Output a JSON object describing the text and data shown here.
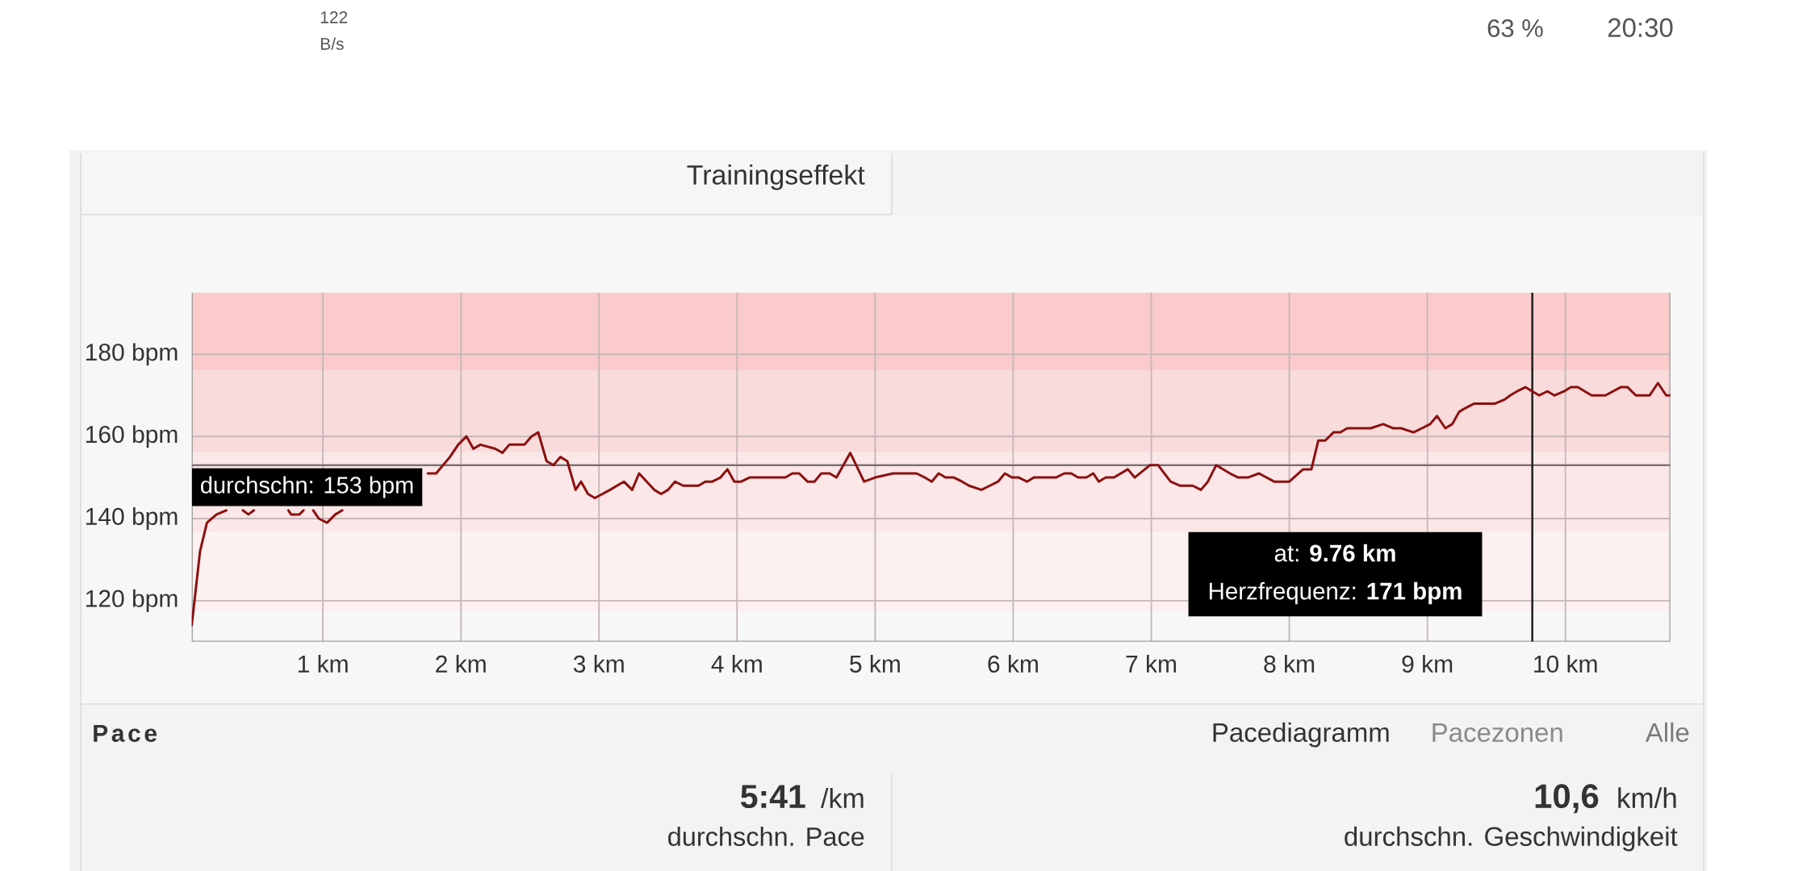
{
  "chart_data": {
    "type": "line",
    "x": [
      0.05,
      0.11,
      0.16,
      0.23,
      0.3,
      0.36,
      0.42,
      0.46,
      0.5,
      0.62,
      0.75,
      0.77,
      0.83,
      0.86,
      0.9,
      0.93,
      0.97,
      1.03,
      1.09,
      1.14,
      1.45,
      1.76,
      1.82,
      1.92,
      1.98,
      2.04,
      2.09,
      2.14,
      2.25,
      2.3,
      2.35,
      2.4,
      2.46,
      2.51,
      2.56,
      2.62,
      2.67,
      2.72,
      2.77,
      2.83,
      2.87,
      2.92,
      2.97,
      3.08,
      3.18,
      3.24,
      3.29,
      3.4,
      3.45,
      3.5,
      3.55,
      3.61,
      3.72,
      3.77,
      3.82,
      3.88,
      3.93,
      3.98,
      4.03,
      4.09,
      4.19,
      4.29,
      4.35,
      4.4,
      4.45,
      4.51,
      4.56,
      4.61,
      4.67,
      4.72,
      4.77,
      4.82,
      4.92,
      5.0,
      5.13,
      5.19,
      5.25,
      5.3,
      5.36,
      5.41,
      5.46,
      5.51,
      5.57,
      5.63,
      5.68,
      5.77,
      5.83,
      5.89,
      5.94,
      5.99,
      6.04,
      6.1,
      6.15,
      6.21,
      6.26,
      6.31,
      6.37,
      6.42,
      6.47,
      6.53,
      6.58,
      6.62,
      6.67,
      6.73,
      6.83,
      6.88,
      6.99,
      7.05,
      7.14,
      7.21,
      7.3,
      7.36,
      7.41,
      7.47,
      7.57,
      7.63,
      7.7,
      7.78,
      7.89,
      8.0,
      8.1,
      8.16,
      8.21,
      8.26,
      8.32,
      8.37,
      8.42,
      8.49,
      8.53,
      8.59,
      8.68,
      8.75,
      8.81,
      8.9,
      8.96,
      9.02,
      9.07,
      9.13,
      9.18,
      9.23,
      9.28,
      9.34,
      9.42,
      9.49,
      9.56,
      9.6,
      9.65,
      9.71,
      9.76,
      9.81,
      9.87,
      9.92,
      9.99,
      10.04,
      10.09,
      10.14,
      10.19,
      10.29,
      10.4,
      10.45,
      10.51,
      10.61,
      10.67,
      10.73,
      10.76
    ],
    "values": [
      114,
      132,
      139,
      141,
      142,
      null,
      142,
      141,
      142,
      null,
      142,
      141,
      141,
      142,
      null,
      142,
      140,
      139,
      141,
      142,
      null,
      151,
      151,
      155,
      158,
      160,
      157,
      158,
      157,
      156,
      158,
      158,
      158,
      160,
      161,
      154,
      153,
      155,
      154,
      147,
      149,
      146,
      145,
      147,
      149,
      147,
      151,
      147,
      146,
      147,
      149,
      148,
      148,
      149,
      149,
      150,
      152,
      149,
      149,
      150,
      150,
      150,
      150,
      151,
      151,
      149,
      149,
      151,
      151,
      150,
      153,
      156,
      149,
      150,
      151,
      151,
      151,
      151,
      150,
      149,
      151,
      150,
      150,
      149,
      148,
      147,
      148,
      149,
      151,
      150,
      150,
      149,
      150,
      150,
      150,
      150,
      151,
      151,
      150,
      150,
      151,
      149,
      150,
      150,
      152,
      150,
      153,
      153,
      149,
      148,
      148,
      147,
      149,
      153,
      151,
      150,
      150,
      151,
      149,
      149,
      152,
      152,
      159,
      159,
      161,
      161,
      162,
      162,
      162,
      162,
      163,
      162,
      162,
      161,
      162,
      163,
      165,
      162,
      163,
      166,
      167,
      168,
      168,
      168,
      169,
      170,
      171,
      172,
      171,
      170,
      171,
      170,
      171,
      172,
      172,
      171,
      170,
      170,
      172,
      172,
      170,
      170,
      173,
      170,
      170
    ],
    "color": "#8c1010",
    "xlim": [
      0.05,
      10.76
    ],
    "ylim": [
      110,
      195
    ],
    "xticks": [
      {
        "value": 1,
        "label": "1 km"
      },
      {
        "value": 2,
        "label": "2 km"
      },
      {
        "value": 3,
        "label": "3 km"
      },
      {
        "value": 4,
        "label": "4 km"
      },
      {
        "value": 5,
        "label": "5 km"
      },
      {
        "value": 6,
        "label": "6 km"
      },
      {
        "value": 7,
        "label": "7 km"
      },
      {
        "value": 8,
        "label": "8 km"
      },
      {
        "value": 9,
        "label": "9 km"
      },
      {
        "value": 10,
        "label": "10 km"
      }
    ],
    "yticks": [
      {
        "value": 120,
        "label": "120 bpm"
      },
      {
        "value": 140,
        "label": "140 bpm"
      },
      {
        "value": 160,
        "label": "160 bpm"
      },
      {
        "value": 180,
        "label": "180 bpm"
      }
    ],
    "grid": true,
    "bands": [
      {
        "axis": "y",
        "from": 117.4,
        "to": 136.8,
        "color": "#fcf0f0"
      },
      {
        "axis": "y",
        "from": 136.8,
        "to": 156.2,
        "color": "#fbe7e7"
      },
      {
        "axis": "y",
        "from": 156.2,
        "to": 176.1,
        "color": "#f9dbdb"
      },
      {
        "axis": "y",
        "from": 176.1,
        "to": 195,
        "color": "#fbcbcb"
      }
    ],
    "ref_lines": [
      {
        "axis": "y",
        "value": 153,
        "label": "durchschn: 153 bpm",
        "color": "#7b6f6f"
      },
      {
        "axis": "x",
        "value": 9.76,
        "color": "#1a1a1a"
      }
    ],
    "annotations": [
      "at: **9.76 km**",
      "Herzfrequenz: **171 bpm**",
      "Trainingseffekt",
      "122",
      "B/s",
      "63 %",
      "20:30",
      "Pace",
      "Pacediagramm",
      "Pacezonen",
      "Alle",
      "5:41",
      "/km",
      "durchschn. Pace",
      "10,6",
      "km/h",
      "durchschn. Geschwindigkeit"
    ]
  }
}
